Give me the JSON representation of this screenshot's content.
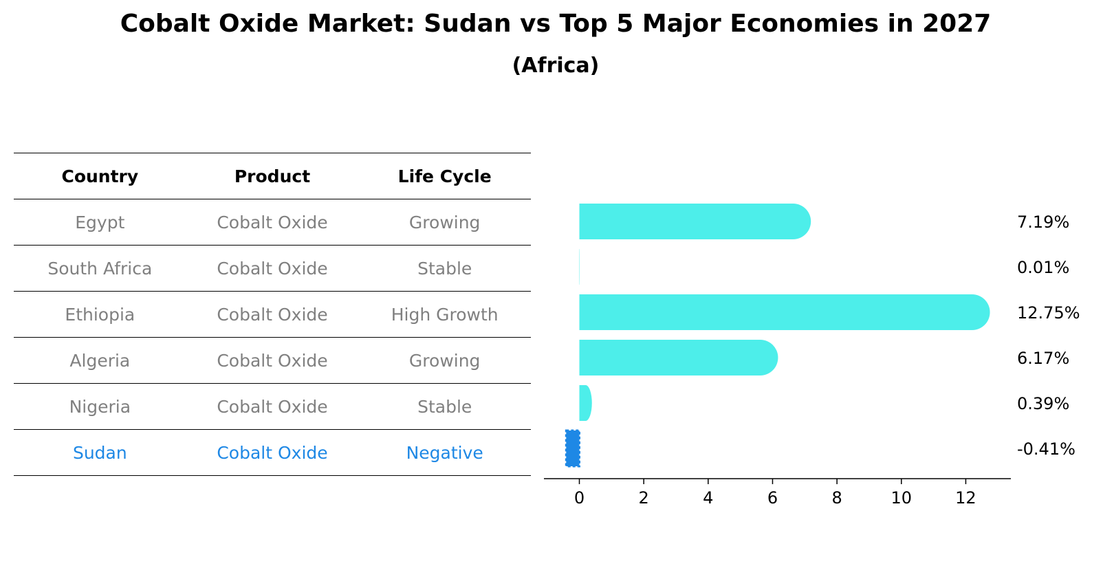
{
  "title": "Cobalt Oxide Market: Sudan vs Top 5 Major Economies in 2027",
  "subtitle": "(Africa)",
  "table": {
    "headers": [
      "Country",
      "Product",
      "Life Cycle"
    ],
    "rows": [
      {
        "country": "Egypt",
        "product": "Cobalt Oxide",
        "life_cycle": "Growing"
      },
      {
        "country": "South Africa",
        "product": "Cobalt Oxide",
        "life_cycle": "Stable"
      },
      {
        "country": "Ethiopia",
        "product": "Cobalt Oxide",
        "life_cycle": "High Growth"
      },
      {
        "country": "Algeria",
        "product": "Cobalt Oxide",
        "life_cycle": "Growing"
      },
      {
        "country": "Nigeria",
        "product": "Cobalt Oxide",
        "life_cycle": "Stable"
      },
      {
        "country": "Sudan",
        "product": "Cobalt Oxide",
        "life_cycle": "Negative"
      }
    ]
  },
  "colors": {
    "bar": "#4deeea",
    "highlight": "#1e88e5",
    "muted_text": "#808080"
  },
  "chart_data": {
    "type": "bar",
    "orientation": "horizontal",
    "title": "Cobalt Oxide Market: Sudan vs Top 5 Major Economies in 2027",
    "subtitle": "(Africa)",
    "categories": [
      "Egypt",
      "South Africa",
      "Ethiopia",
      "Algeria",
      "Nigeria",
      "Sudan"
    ],
    "values": [
      7.19,
      0.01,
      12.75,
      6.17,
      0.39,
      -0.41
    ],
    "value_labels": [
      "7.19%",
      "0.01%",
      "12.75%",
      "6.17%",
      "0.39%",
      "-0.41%"
    ],
    "xticks": [
      0,
      2,
      4,
      6,
      8,
      10,
      12
    ],
    "xlim": [
      -1.1,
      13.4
    ],
    "highlight_category": "Sudan",
    "grid": false
  }
}
